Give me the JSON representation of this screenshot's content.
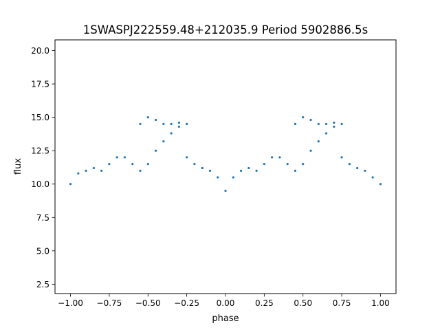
{
  "chart_data": {
    "type": "scatter",
    "title": "1SWASPJ222559.48+212035.9 Period 5902886.5s",
    "xlabel": "phase",
    "ylabel": "flux",
    "xlim": [
      -1.1,
      1.1
    ],
    "ylim": [
      1.8,
      20.8
    ],
    "xticks": [
      -1.0,
      -0.75,
      -0.5,
      -0.25,
      0.0,
      0.25,
      0.5,
      0.75,
      1.0
    ],
    "xtick_labels": [
      "−1.00",
      "−0.75",
      "−0.50",
      "−0.25",
      "0.00",
      "0.25",
      "0.50",
      "0.75",
      "1.00"
    ],
    "yticks": [
      2.5,
      5.0,
      7.5,
      10.0,
      12.5,
      15.0,
      17.5,
      20.0
    ],
    "ytick_labels": [
      "2.5",
      "5.0",
      "7.5",
      "10.0",
      "12.5",
      "15.0",
      "17.5",
      "20.0"
    ],
    "grid": false,
    "marker_color": "#1f77b4",
    "series": [
      {
        "x": [
          -1.0,
          -0.95,
          -0.9,
          -0.85,
          -0.8,
          -0.75,
          -0.7,
          -0.65,
          -0.6,
          -0.55,
          -0.5,
          -0.45,
          -0.4,
          -0.35,
          -0.3,
          -0.25,
          -0.2,
          -0.15,
          -0.1,
          -0.05,
          0.0,
          0.05,
          0.1,
          0.15,
          0.2,
          0.25,
          0.3,
          0.35,
          0.4,
          0.45,
          0.5,
          0.55,
          0.6,
          0.65,
          0.7,
          0.75,
          0.8,
          0.85,
          0.9,
          0.95,
          1.0
        ],
        "y": [
          10.0,
          10.8,
          11.0,
          11.2,
          11.0,
          11.5,
          12.0,
          12.0,
          11.5,
          14.5,
          15.0,
          14.8,
          14.5,
          14.5,
          14.6,
          12.0,
          11.5,
          11.2,
          11.0,
          10.5,
          9.5,
          10.5,
          11.0,
          11.2,
          11.0,
          11.5,
          12.0,
          12.0,
          11.5,
          14.5,
          15.0,
          14.8,
          14.5,
          14.5,
          14.6,
          12.0,
          11.5,
          11.2,
          11.0,
          10.5,
          10.0
        ]
      },
      {
        "x": [
          -0.55,
          -0.5,
          -0.45,
          -0.4,
          -0.35,
          -0.3,
          -0.25,
          0.45,
          0.5,
          0.55,
          0.6,
          0.65,
          0.7,
          0.75
        ],
        "y": [
          11.0,
          11.5,
          12.5,
          13.2,
          13.8,
          14.3,
          14.5,
          11.0,
          11.5,
          12.5,
          13.2,
          13.8,
          14.3,
          14.5
        ]
      }
    ]
  }
}
